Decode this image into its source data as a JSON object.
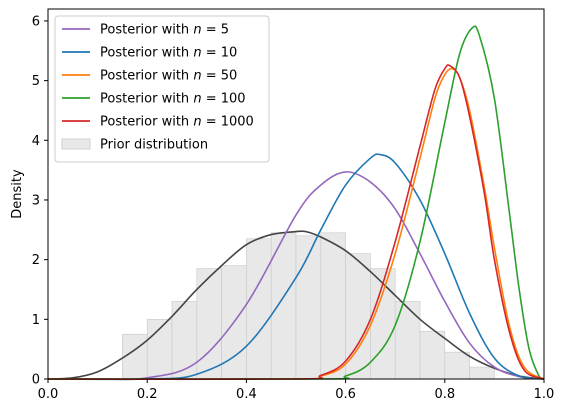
{
  "chart_data": {
    "type": "line",
    "title": "",
    "xlabel": "",
    "ylabel": "Density",
    "xlim": [
      0.0,
      1.0
    ],
    "ylim": [
      0,
      6.2
    ],
    "xticks": [
      "0.0",
      "0.2",
      "0.4",
      "0.6",
      "0.8",
      "1.0"
    ],
    "yticks": [
      "0",
      "1",
      "2",
      "3",
      "4",
      "5",
      "6"
    ],
    "grid": false,
    "legend_position": "top-left",
    "series": [
      {
        "name": "Posterior with n = 5",
        "label_prefix": "Posterior with ",
        "label_var": "n",
        "label_suffix": " = 5",
        "color": "#9467bd",
        "x": [
          0.1,
          0.2,
          0.3,
          0.4,
          0.5,
          0.55,
          0.6,
          0.65,
          0.7,
          0.75,
          0.8,
          0.85,
          0.9,
          0.95,
          1.0
        ],
        "y": [
          0.0,
          0.02,
          0.28,
          1.25,
          2.75,
          3.25,
          3.47,
          3.3,
          2.85,
          2.1,
          1.3,
          0.6,
          0.2,
          0.04,
          0.0
        ]
      },
      {
        "name": "Posterior with n = 10",
        "label_prefix": "Posterior with ",
        "label_var": "n",
        "label_suffix": " = 10",
        "color": "#1f77b4",
        "x": [
          0.2,
          0.3,
          0.4,
          0.5,
          0.55,
          0.6,
          0.65,
          0.67,
          0.7,
          0.75,
          0.8,
          0.85,
          0.9,
          0.95,
          1.0
        ],
        "y": [
          0.0,
          0.08,
          0.55,
          1.7,
          2.5,
          3.25,
          3.7,
          3.76,
          3.62,
          3.0,
          2.1,
          1.1,
          0.35,
          0.05,
          0.0
        ]
      },
      {
        "name": "Posterior with n = 50",
        "label_prefix": "Posterior with ",
        "label_var": "n",
        "label_suffix": " = 50",
        "color": "#ff7f0e",
        "x": [
          0.5,
          0.55,
          0.6,
          0.65,
          0.7,
          0.75,
          0.78,
          0.8,
          0.815,
          0.83,
          0.85,
          0.88,
          0.9,
          0.93,
          0.96,
          1.0
        ],
        "y": [
          0.0,
          0.05,
          0.25,
          0.9,
          2.1,
          3.7,
          4.7,
          5.1,
          5.2,
          5.05,
          4.5,
          3.2,
          2.2,
          0.9,
          0.2,
          0.0
        ]
      },
      {
        "name": "Posterior with n = 100",
        "label_prefix": "Posterior with ",
        "label_var": "n",
        "label_suffix": " = 100",
        "color": "#2ca02c",
        "x": [
          0.55,
          0.6,
          0.65,
          0.7,
          0.75,
          0.8,
          0.83,
          0.855,
          0.87,
          0.9,
          0.93,
          0.95,
          0.97,
          0.99,
          1.0
        ],
        "y": [
          0.0,
          0.05,
          0.28,
          0.9,
          2.3,
          4.3,
          5.45,
          5.88,
          5.75,
          4.7,
          2.8,
          1.5,
          0.5,
          0.05,
          0.0
        ]
      },
      {
        "name": "Posterior with n = 1000",
        "label_prefix": "Posterior with ",
        "label_var": "n",
        "label_suffix": " = 1000",
        "color": "#d62728",
        "x": [
          0.5,
          0.55,
          0.6,
          0.65,
          0.7,
          0.75,
          0.78,
          0.8,
          0.81,
          0.83,
          0.85,
          0.88,
          0.9,
          0.93,
          0.96,
          1.0
        ],
        "y": [
          0.0,
          0.06,
          0.3,
          1.0,
          2.3,
          3.9,
          4.85,
          5.2,
          5.25,
          5.05,
          4.4,
          3.1,
          2.0,
          0.8,
          0.15,
          0.0
        ]
      }
    ],
    "prior": {
      "name": "Prior distribution",
      "kde_color": "#444444",
      "bar_fill": "#e8e8e8",
      "bar_edge": "#c8c8c8",
      "kde_x": [
        0.0,
        0.05,
        0.1,
        0.15,
        0.2,
        0.25,
        0.3,
        0.35,
        0.4,
        0.45,
        0.5,
        0.52,
        0.55,
        0.6,
        0.65,
        0.7,
        0.75,
        0.8,
        0.85,
        0.9,
        0.95,
        1.0
      ],
      "kde_y": [
        0.0,
        0.02,
        0.12,
        0.35,
        0.65,
        1.05,
        1.5,
        1.9,
        2.25,
        2.42,
        2.47,
        2.47,
        2.38,
        2.15,
        1.8,
        1.4,
        1.0,
        0.68,
        0.38,
        0.18,
        0.05,
        0.0
      ],
      "bin_edges": [
        0.15,
        0.2,
        0.25,
        0.3,
        0.35,
        0.4,
        0.45,
        0.5,
        0.55,
        0.6,
        0.65,
        0.7,
        0.75,
        0.8,
        0.85,
        0.9
      ],
      "bin_heights": [
        0.75,
        1.0,
        1.3,
        1.85,
        1.9,
        2.35,
        2.45,
        2.4,
        2.45,
        2.1,
        1.85,
        1.3,
        0.8,
        0.45,
        0.2
      ]
    }
  }
}
